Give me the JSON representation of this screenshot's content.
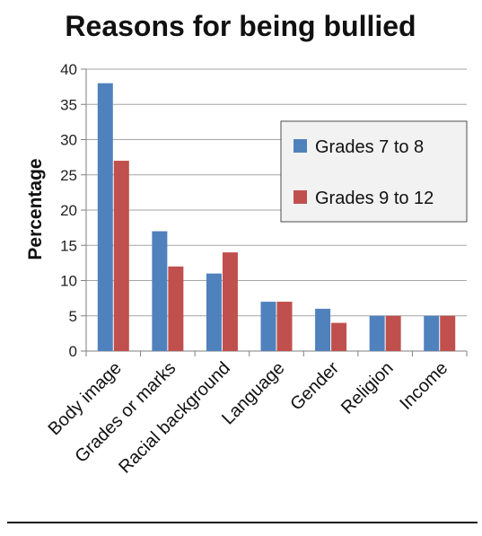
{
  "chart_data": {
    "type": "bar",
    "title": "Reasons for being bullied",
    "xlabel": "",
    "ylabel": "Percentage",
    "categories": [
      "Body image",
      "Grades or marks",
      "Racial background",
      "Language",
      "Gender",
      "Religion",
      "Income"
    ],
    "series": [
      {
        "name": "Grades 7 to 8",
        "color": "#4F81BD",
        "values": [
          38,
          17,
          11,
          7,
          6,
          5,
          5
        ]
      },
      {
        "name": "Grades 9 to 12",
        "color": "#C0504D",
        "values": [
          27,
          12,
          14,
          7,
          4,
          5,
          5
        ]
      }
    ],
    "ylim": [
      0,
      40
    ],
    "yticks": [
      0,
      5,
      10,
      15,
      20,
      25,
      30,
      35,
      40
    ],
    "grid": true,
    "legend_position": "right",
    "colors": {
      "grid": "#A6A6A6",
      "axis": "#7F7F7F",
      "legend_border": "#4D4D4D",
      "legend_bg": "#F2F2F2",
      "bottom_rule": "#111111"
    }
  }
}
